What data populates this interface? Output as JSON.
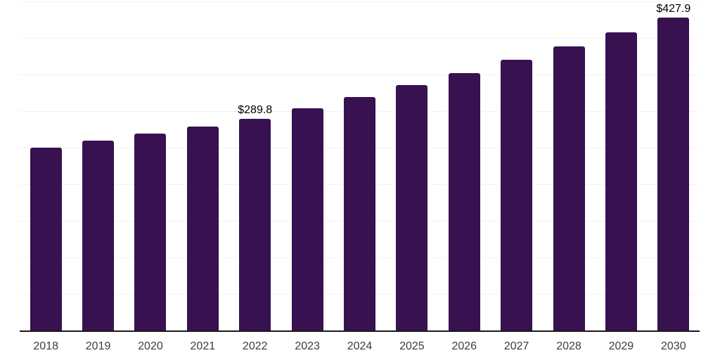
{
  "chart_data": {
    "type": "bar",
    "title": "",
    "xlabel": "",
    "ylabel": "",
    "categories": [
      "2018",
      "2019",
      "2020",
      "2021",
      "2022",
      "2023",
      "2024",
      "2025",
      "2026",
      "2027",
      "2028",
      "2029",
      "2030"
    ],
    "values": [
      249.6,
      259.3,
      269.0,
      279.2,
      289.8,
      304.3,
      319.5,
      335.5,
      352.3,
      369.9,
      388.4,
      407.8,
      427.9
    ],
    "data_labels": {
      "2022": "$289.8",
      "2030": "$427.9"
    },
    "ylim": [
      0,
      450
    ],
    "grid_step": 50,
    "grid": "horizontal",
    "legend_position": "none",
    "y_axis_tick_labels": "none",
    "colors": {
      "bar": "#371150",
      "axis_line": "#1a1a1a",
      "gridline": "#f2f2f2",
      "tick_label": "#3d3d3d",
      "data_label": "#000000",
      "background": "#ffffff"
    }
  }
}
